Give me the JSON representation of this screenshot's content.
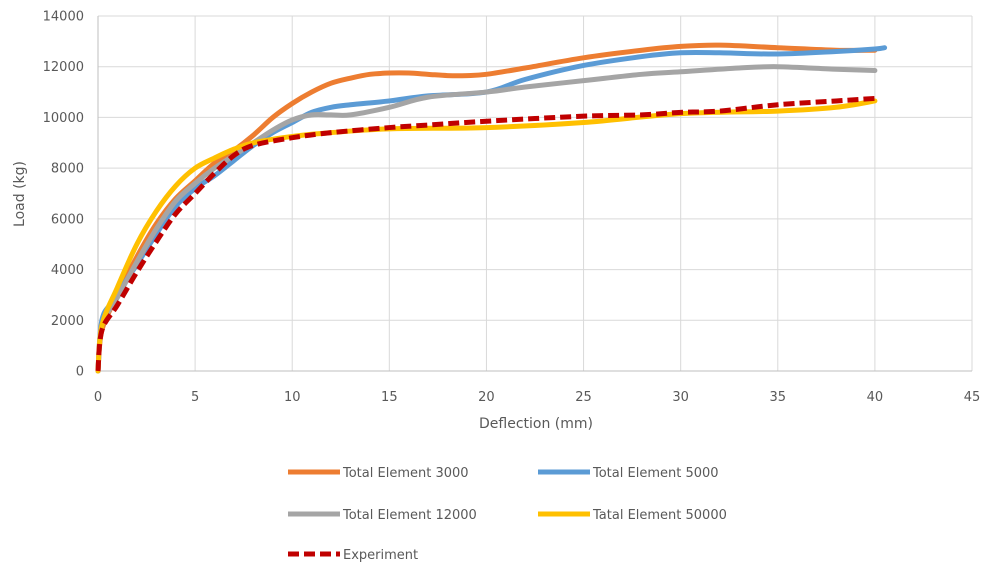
{
  "chart_data": {
    "type": "line",
    "xlabel": "Deflection (mm)",
    "ylabel": "Load (kg)",
    "xlim": [
      0,
      45
    ],
    "ylim": [
      0,
      14000
    ],
    "x_ticks": [
      0,
      5,
      10,
      15,
      20,
      25,
      30,
      35,
      40,
      45
    ],
    "y_ticks": [
      0,
      2000,
      4000,
      6000,
      8000,
      10000,
      12000,
      14000
    ],
    "grid": true,
    "legend_position": "bottom",
    "series": [
      {
        "name": "Total Element 3000",
        "color": "#ED7D31",
        "dashed": false,
        "points": [
          [
            0,
            0
          ],
          [
            0.2,
            1600
          ],
          [
            1,
            3000
          ],
          [
            2,
            4500
          ],
          [
            3,
            5800
          ],
          [
            4,
            6800
          ],
          [
            5,
            7500
          ],
          [
            6,
            8200
          ],
          [
            7,
            8700
          ],
          [
            8,
            9300
          ],
          [
            9,
            10000
          ],
          [
            10,
            10550
          ],
          [
            11,
            11000
          ],
          [
            12,
            11350
          ],
          [
            13,
            11550
          ],
          [
            14,
            11700
          ],
          [
            15,
            11750
          ],
          [
            16,
            11750
          ],
          [
            17,
            11700
          ],
          [
            18,
            11650
          ],
          [
            19,
            11650
          ],
          [
            20,
            11700
          ],
          [
            22,
            11950
          ],
          [
            25,
            12350
          ],
          [
            28,
            12650
          ],
          [
            30,
            12800
          ],
          [
            32,
            12850
          ],
          [
            35,
            12750
          ],
          [
            38,
            12650
          ],
          [
            40,
            12650
          ]
        ]
      },
      {
        "name": "Total Element 5000",
        "color": "#5B9BD5",
        "dashed": false,
        "points": [
          [
            0,
            0
          ],
          [
            0.2,
            2000
          ],
          [
            0.8,
            2800
          ],
          [
            2,
            4200
          ],
          [
            3,
            5400
          ],
          [
            4,
            6500
          ],
          [
            5,
            7200
          ],
          [
            6,
            7700
          ],
          [
            7,
            8300
          ],
          [
            8,
            8900
          ],
          [
            9,
            9400
          ],
          [
            10,
            9800
          ],
          [
            11,
            10200
          ],
          [
            12,
            10400
          ],
          [
            13,
            10500
          ],
          [
            15,
            10650
          ],
          [
            17,
            10850
          ],
          [
            20,
            11000
          ],
          [
            22,
            11500
          ],
          [
            25,
            12050
          ],
          [
            28,
            12400
          ],
          [
            30,
            12550
          ],
          [
            32,
            12550
          ],
          [
            35,
            12500
          ],
          [
            38,
            12600
          ],
          [
            40,
            12700
          ],
          [
            40.5,
            12750
          ]
        ]
      },
      {
        "name": "Total Element 12000",
        "color": "#A5A5A5",
        "dashed": false,
        "points": [
          [
            0,
            0
          ],
          [
            0.2,
            1800
          ],
          [
            1,
            2900
          ],
          [
            2,
            4300
          ],
          [
            3,
            5600
          ],
          [
            4,
            6700
          ],
          [
            5,
            7400
          ],
          [
            6,
            8000
          ],
          [
            7,
            8500
          ],
          [
            8,
            9000
          ],
          [
            9,
            9500
          ],
          [
            10,
            9900
          ],
          [
            11,
            10100
          ],
          [
            12,
            10100
          ],
          [
            13,
            10100
          ],
          [
            15,
            10400
          ],
          [
            17,
            10800
          ],
          [
            20,
            11000
          ],
          [
            22,
            11200
          ],
          [
            25,
            11450
          ],
          [
            28,
            11700
          ],
          [
            30,
            11800
          ],
          [
            33,
            11950
          ],
          [
            35,
            12000
          ],
          [
            38,
            11900
          ],
          [
            40,
            11850
          ]
        ]
      },
      {
        "name": "Tatal Element 50000",
        "color": "#FFC000",
        "dashed": false,
        "points": [
          [
            0,
            0
          ],
          [
            0.2,
            1800
          ],
          [
            1,
            3300
          ],
          [
            2,
            5000
          ],
          [
            3,
            6300
          ],
          [
            4,
            7300
          ],
          [
            5,
            8000
          ],
          [
            6,
            8400
          ],
          [
            7,
            8750
          ],
          [
            8,
            9000
          ],
          [
            10,
            9250
          ],
          [
            12,
            9400
          ],
          [
            15,
            9550
          ],
          [
            20,
            9600
          ],
          [
            25,
            9800
          ],
          [
            30,
            10150
          ],
          [
            35,
            10250
          ],
          [
            38,
            10400
          ],
          [
            40,
            10650
          ]
        ]
      },
      {
        "name": "Experiment",
        "color": "#C00000",
        "dashed": true,
        "points": [
          [
            0,
            0
          ],
          [
            0.2,
            1600
          ],
          [
            1,
            2600
          ],
          [
            2,
            3900
          ],
          [
            3,
            5100
          ],
          [
            4,
            6200
          ],
          [
            5,
            7000
          ],
          [
            6,
            7800
          ],
          [
            7,
            8500
          ],
          [
            8,
            8900
          ],
          [
            10,
            9200
          ],
          [
            12,
            9400
          ],
          [
            15,
            9600
          ],
          [
            17,
            9700
          ],
          [
            20,
            9850
          ],
          [
            25,
            10050
          ],
          [
            28,
            10100
          ],
          [
            30,
            10200
          ],
          [
            32,
            10250
          ],
          [
            35,
            10500
          ],
          [
            38,
            10650
          ],
          [
            40,
            10750
          ]
        ]
      }
    ]
  }
}
